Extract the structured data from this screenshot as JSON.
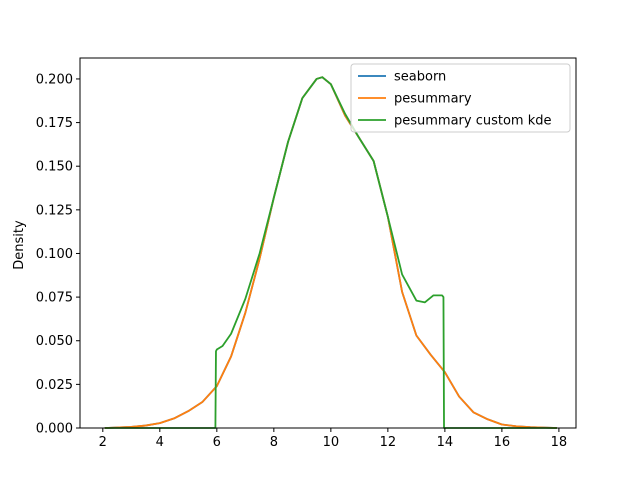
{
  "chart_data": {
    "type": "line",
    "title": "",
    "xlabel": "",
    "ylabel": "Density",
    "xlim": [
      1.2,
      18.6
    ],
    "ylim": [
      0.0,
      0.212
    ],
    "x_ticks": [
      2,
      4,
      6,
      8,
      10,
      12,
      14,
      16,
      18
    ],
    "y_ticks": [
      0.0,
      0.025,
      0.05,
      0.075,
      0.1,
      0.125,
      0.15,
      0.175,
      0.2
    ],
    "x_tick_labels": [
      "2",
      "4",
      "6",
      "8",
      "10",
      "12",
      "14",
      "16",
      "18"
    ],
    "y_tick_labels": [
      "0.000",
      "0.025",
      "0.050",
      "0.075",
      "0.100",
      "0.125",
      "0.150",
      "0.175",
      "0.200"
    ],
    "grid": false,
    "legend_position": "upper-right",
    "series": [
      {
        "name": "seaborn",
        "color": "#1f77b4",
        "x": [
          2.1,
          3.0,
          3.5,
          4.0,
          4.5,
          5.0,
          5.5,
          6.0,
          6.5,
          7.0,
          7.5,
          8.0,
          8.5,
          9.0,
          9.5,
          9.7,
          10.0,
          10.5,
          11.0,
          11.5,
          12.0,
          12.5,
          13.0,
          13.5,
          14.0,
          14.5,
          15.0,
          15.5,
          16.0,
          16.5,
          17.0,
          17.9
        ],
        "y": [
          0.0,
          0.0006,
          0.0014,
          0.0028,
          0.0055,
          0.0097,
          0.015,
          0.024,
          0.041,
          0.066,
          0.097,
          0.132,
          0.164,
          0.189,
          0.2,
          0.201,
          0.197,
          0.179,
          0.166,
          0.153,
          0.121,
          0.078,
          0.053,
          0.042,
          0.032,
          0.018,
          0.009,
          0.005,
          0.002,
          0.001,
          0.0005,
          0.0
        ]
      },
      {
        "name": "pesummary",
        "color": "#ff7f0e",
        "x": [
          2.1,
          3.0,
          3.5,
          4.0,
          4.5,
          5.0,
          5.5,
          6.0,
          6.5,
          7.0,
          7.5,
          8.0,
          8.5,
          9.0,
          9.5,
          9.7,
          10.0,
          10.5,
          11.0,
          11.5,
          12.0,
          12.5,
          13.0,
          13.5,
          14.0,
          14.5,
          15.0,
          15.5,
          16.0,
          16.5,
          17.0,
          17.9
        ],
        "y": [
          0.0,
          0.0006,
          0.0014,
          0.0028,
          0.0055,
          0.0097,
          0.015,
          0.024,
          0.041,
          0.066,
          0.097,
          0.132,
          0.164,
          0.189,
          0.2,
          0.201,
          0.197,
          0.179,
          0.166,
          0.153,
          0.121,
          0.078,
          0.053,
          0.042,
          0.032,
          0.018,
          0.009,
          0.005,
          0.002,
          0.001,
          0.0005,
          0.0
        ]
      },
      {
        "name": "pesummary custom kde",
        "color": "#2ca02c",
        "x": [
          2.1,
          5.95,
          5.97,
          6.0,
          6.2,
          6.5,
          7.0,
          7.5,
          8.0,
          8.5,
          9.0,
          9.5,
          9.7,
          10.0,
          10.5,
          11.0,
          11.5,
          12.0,
          12.5,
          13.0,
          13.3,
          13.6,
          13.9,
          13.95,
          13.97,
          14.05,
          17.9
        ],
        "y": [
          0.0,
          0.0,
          0.044,
          0.045,
          0.047,
          0.054,
          0.074,
          0.1,
          0.132,
          0.164,
          0.189,
          0.2,
          0.201,
          0.197,
          0.18,
          0.166,
          0.153,
          0.121,
          0.088,
          0.073,
          0.072,
          0.076,
          0.076,
          0.075,
          0.0,
          0.0,
          0.0
        ]
      }
    ]
  }
}
